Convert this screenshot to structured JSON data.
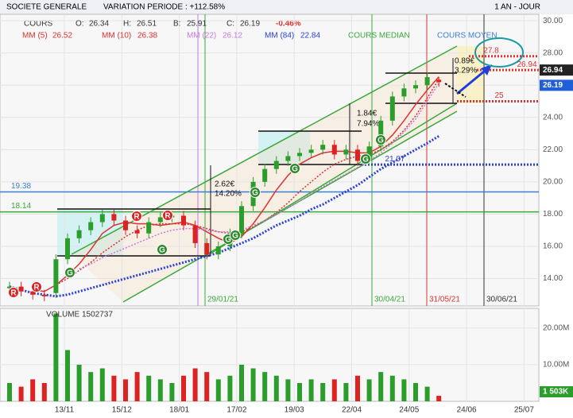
{
  "chart_data": {
    "type": "candlestick",
    "header": {
      "title": "SOCIETE GENERALE",
      "variation": "VARIATION PERIODE : +112.58%",
      "period": "1 AN - JOUR",
      "instrument": "COURS",
      "ohlc_labels": [
        "O:",
        "H:",
        "B:",
        "C:"
      ],
      "change": "-0.46%"
    },
    "candles": {
      "open": [
        13.4,
        13.5,
        13.2,
        13.0,
        13.1,
        15.2,
        16.5,
        17.0,
        17.5,
        18.0,
        17.6,
        17.0,
        16.8,
        17.5,
        17.8,
        17.9,
        17.3,
        16.2,
        15.5,
        16.0,
        16.8,
        18.5,
        20.0,
        20.8,
        21.3,
        21.6,
        21.8,
        22.0,
        22.3,
        21.7,
        22.0,
        21.3,
        22.2,
        23.8,
        25.3,
        25.8,
        26.0,
        26.34
      ],
      "high": [
        13.8,
        13.8,
        13.5,
        13.3,
        15.5,
        16.8,
        17.3,
        17.8,
        18.3,
        18.3,
        17.9,
        17.3,
        17.8,
        18.1,
        18.2,
        18.2,
        17.6,
        16.5,
        16.3,
        17.1,
        18.8,
        20.3,
        21.1,
        21.6,
        21.9,
        22.1,
        22.3,
        22.6,
        22.6,
        22.3,
        22.3,
        22.5,
        24.1,
        25.6,
        26.1,
        26.3,
        26.8,
        26.51
      ],
      "low": [
        13.1,
        12.9,
        12.7,
        12.6,
        12.8,
        14.9,
        16.2,
        16.7,
        17.2,
        17.3,
        16.7,
        16.5,
        16.5,
        17.2,
        17.5,
        17.0,
        15.9,
        15.2,
        15.2,
        15.7,
        16.5,
        18.2,
        19.7,
        20.5,
        21.0,
        21.3,
        21.5,
        21.7,
        21.4,
        21.4,
        21.0,
        21.0,
        21.9,
        23.5,
        25.0,
        25.5,
        25.7,
        25.91
      ],
      "close": [
        13.5,
        13.2,
        13.0,
        12.9,
        15.2,
        16.5,
        17.0,
        17.5,
        18.0,
        17.6,
        17.0,
        16.8,
        17.5,
        17.8,
        17.9,
        17.3,
        16.2,
        15.5,
        16.0,
        16.8,
        18.5,
        20.0,
        20.8,
        21.3,
        21.6,
        21.8,
        22.0,
        22.3,
        21.7,
        22.0,
        21.3,
        22.2,
        23.8,
        25.3,
        25.8,
        26.0,
        26.5,
        26.19
      ]
    },
    "series": [
      {
        "name": "MM (5)",
        "color": "#e03030",
        "values": [
          null,
          null,
          13.3,
          13.2,
          13.6,
          14.2,
          14.9,
          15.8,
          16.8,
          17.3,
          17.5,
          17.4,
          17.4,
          17.3,
          17.4,
          17.5,
          17.3,
          16.9,
          16.5,
          16.2,
          16.6,
          17.4,
          18.4,
          19.5,
          20.4,
          21.1,
          21.5,
          21.8,
          21.9,
          21.9,
          21.8,
          21.8,
          22.2,
          22.9,
          23.8,
          24.8,
          25.7,
          26.52
        ]
      },
      {
        "name": "MM (10)",
        "color": "#e03030",
        "values": [
          null,
          null,
          null,
          null,
          13.6,
          14.0,
          14.5,
          15.0,
          15.6,
          16.1,
          16.6,
          17.0,
          17.3,
          17.4,
          17.4,
          17.4,
          17.3,
          17.1,
          16.9,
          16.8,
          16.9,
          17.2,
          17.6,
          18.1,
          18.7,
          19.4,
          20.0,
          20.6,
          21.1,
          21.4,
          21.6,
          21.7,
          22.0,
          22.5,
          23.2,
          24.1,
          25.2,
          26.38
        ]
      },
      {
        "name": "MM (22)",
        "color": "#c77be0",
        "values": [
          null,
          null,
          null,
          null,
          null,
          null,
          14.6,
          14.9,
          15.3,
          15.6,
          15.9,
          16.2,
          16.5,
          16.8,
          17.0,
          17.1,
          17.1,
          17.0,
          16.9,
          16.9,
          17.0,
          17.3,
          17.6,
          18.0,
          18.4,
          18.8,
          19.3,
          19.7,
          20.1,
          20.5,
          20.9,
          21.3,
          21.8,
          22.4,
          23.1,
          23.9,
          25.0,
          26.12
        ]
      },
      {
        "name": "MM (84)",
        "color": "#2a3fd8",
        "values": [
          13.5,
          13.3,
          13.1,
          13.0,
          12.9,
          13.0,
          13.2,
          13.4,
          13.6,
          13.8,
          14.0,
          14.2,
          14.4,
          14.6,
          14.8,
          15.0,
          15.2,
          15.4,
          15.6,
          15.9,
          16.2,
          16.5,
          16.9,
          17.3,
          17.6,
          17.9,
          18.3,
          18.6,
          19.0,
          19.4,
          19.8,
          20.3,
          20.8,
          21.2,
          21.6,
          22.0,
          22.4,
          22.84
        ]
      }
    ],
    "extra_legend": [
      "COURS MEDIAN",
      "COURS MOYEN"
    ],
    "levels": [
      {
        "value": 19.38,
        "color": "#3b7fd4"
      },
      {
        "value": 18.14,
        "color": "#3aa83a"
      },
      {
        "value": 21.07,
        "color": "#2a3fd8"
      },
      {
        "value": 25.0,
        "color": "#e03030"
      },
      {
        "value": 27.8,
        "color": "#e03030"
      },
      {
        "value": 26.94,
        "color": "#e03030"
      }
    ],
    "date_markers": [
      "29/01/21",
      "30/04/21",
      "31/05/21",
      "30/06/21"
    ],
    "annotations": [
      "2.62€",
      "14.20%",
      "1.84€",
      "7.94%",
      "0.89€",
      "3.29%"
    ],
    "signals": [
      "R",
      "R",
      "R",
      "R",
      "G",
      "G",
      "G",
      "G",
      "G",
      "G",
      "G",
      "G"
    ],
    "ylim": [
      12.3,
      30.4
    ],
    "yticks": [
      {
        "value": 30,
        "label": "30.00"
      },
      {
        "value": 28,
        "label": "28.00"
      },
      {
        "value": 26,
        "label": "26.00"
      },
      {
        "value": 24,
        "label": "24.00"
      },
      {
        "value": 22,
        "label": "22.00"
      },
      {
        "value": 20,
        "label": "20.00"
      },
      {
        "value": 18,
        "label": "18.00"
      },
      {
        "value": 16,
        "label": "16.00"
      },
      {
        "value": 14,
        "label": "14.00"
      }
    ],
    "xticks": [
      "13/11",
      "15/12",
      "18/01",
      "17/02",
      "19/03",
      "22/04",
      "24/05",
      "24/06",
      "25/07"
    ],
    "volume": {
      "name": "VOLUME",
      "values": [
        5000000,
        4000000,
        6000000,
        5000000,
        24000000,
        14000000,
        10000000,
        8000000,
        9000000,
        7000000,
        6000000,
        8000000,
        7000000,
        6000000,
        5000000,
        7000000,
        9000000,
        8000000,
        6000000,
        7000000,
        10000000,
        9000000,
        8000000,
        7000000,
        6000000,
        5000000,
        6000000,
        5000000,
        6000000,
        5000000,
        7000000,
        6000000,
        8000000,
        7000000,
        6000000,
        5000000,
        4000000,
        1502737
      ],
      "last_label": "1 503K",
      "ylim": [
        0,
        25400000
      ],
      "yticks": [
        {
          "value": 20000000,
          "label": "20.00M"
        },
        {
          "value": 10000000,
          "label": "10.00M"
        }
      ]
    }
  }
}
